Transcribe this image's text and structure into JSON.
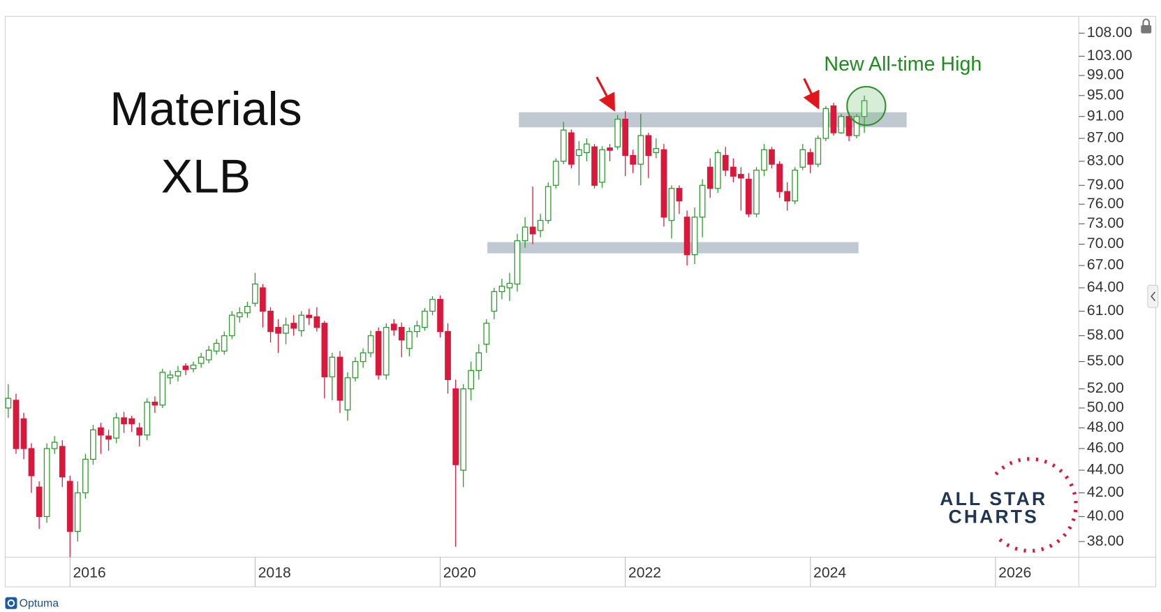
{
  "chart_data": {
    "type": "candlestick",
    "title": "Materials",
    "subtitle": "XLB",
    "annotation": "New All-time High",
    "log_scale": true,
    "up_color": "#2a9a2a",
    "down_color": "#d9183b",
    "band_color": "#b9c2cd",
    "xlim": [
      2015.3,
      2026.9
    ],
    "xticks": [
      2016,
      2018,
      2020,
      2022,
      2024,
      2026
    ],
    "ylim": [
      36.8,
      111.8
    ],
    "yticks": [
      {
        "value": 108,
        "label": "108.00"
      },
      {
        "value": 103,
        "label": "103.00"
      },
      {
        "value": 99,
        "label": "99.00"
      },
      {
        "value": 95,
        "label": "95.00"
      },
      {
        "value": 91,
        "label": "91.00"
      },
      {
        "value": 87,
        "label": "87.00"
      },
      {
        "value": 83,
        "label": "83.00"
      },
      {
        "value": 79,
        "label": "79.00"
      },
      {
        "value": 76,
        "label": "76.00"
      },
      {
        "value": 73,
        "label": "73.00"
      },
      {
        "value": 70,
        "label": "70.00"
      },
      {
        "value": 67,
        "label": "67.00"
      },
      {
        "value": 64,
        "label": "64.00"
      },
      {
        "value": 61,
        "label": "61.00"
      },
      {
        "value": 58,
        "label": "58.00"
      },
      {
        "value": 55,
        "label": "55.00"
      },
      {
        "value": 52,
        "label": "52.00"
      },
      {
        "value": 50,
        "label": "50.00"
      },
      {
        "value": 48,
        "label": "48.00"
      },
      {
        "value": 46,
        "label": "46.00"
      },
      {
        "value": 44,
        "label": "44.00"
      },
      {
        "value": 42,
        "label": "42.00"
      },
      {
        "value": 40,
        "label": "40.00"
      },
      {
        "value": 38,
        "label": "38.00"
      }
    ],
    "bands": [
      {
        "from": 89.0,
        "to": 91.8,
        "x": [
          2020.85,
          2025.04
        ]
      },
      {
        "from": 68.7,
        "to": 70.3,
        "x": [
          2020.51,
          2024.52
        ]
      }
    ],
    "x": [
      2015.333,
      2015.417,
      2015.5,
      2015.583,
      2015.667,
      2015.75,
      2015.833,
      2015.917,
      2016,
      2016.083,
      2016.167,
      2016.25,
      2016.333,
      2016.417,
      2016.5,
      2016.583,
      2016.667,
      2016.75,
      2016.833,
      2016.917,
      2017,
      2017.083,
      2017.167,
      2017.25,
      2017.333,
      2017.417,
      2017.5,
      2017.583,
      2017.667,
      2017.75,
      2017.833,
      2017.917,
      2018,
      2018.083,
      2018.167,
      2018.25,
      2018.333,
      2018.417,
      2018.5,
      2018.583,
      2018.667,
      2018.75,
      2018.833,
      2018.917,
      2019,
      2019.083,
      2019.167,
      2019.25,
      2019.333,
      2019.417,
      2019.5,
      2019.583,
      2019.667,
      2019.75,
      2019.833,
      2019.917,
      2020,
      2020.083,
      2020.167,
      2020.25,
      2020.333,
      2020.417,
      2020.5,
      2020.583,
      2020.667,
      2020.75,
      2020.833,
      2020.917,
      2021,
      2021.083,
      2021.167,
      2021.25,
      2021.333,
      2021.417,
      2021.5,
      2021.583,
      2021.667,
      2021.75,
      2021.833,
      2021.917,
      2022,
      2022.083,
      2022.167,
      2022.25,
      2022.333,
      2022.417,
      2022.5,
      2022.583,
      2022.667,
      2022.75,
      2022.833,
      2022.917,
      2023,
      2023.083,
      2023.167,
      2023.25,
      2023.333,
      2023.417,
      2023.5,
      2023.583,
      2023.667,
      2023.75,
      2023.833,
      2023.917,
      2024,
      2024.083,
      2024.167,
      2024.25,
      2024.333,
      2024.417,
      2024.5,
      2024.583
    ],
    "open": [
      50.0,
      50.8,
      48.9,
      46.0,
      42.5,
      40.0,
      46.0,
      46.2,
      43.0,
      38.8,
      42.0,
      45.0,
      48.0,
      47.2,
      47.0,
      49.0,
      48.9,
      48.0,
      47.3,
      50.6,
      50.3,
      53.2,
      53.4,
      54.5,
      54.2,
      54.8,
      55.2,
      56.2,
      56.2,
      58.0,
      60.3,
      60.8,
      62.0,
      64.0,
      61.0,
      59.0,
      58.3,
      59.5,
      58.6,
      60.5,
      60.3,
      59.5,
      53.3,
      55.5,
      49.8,
      53.2,
      55.0,
      56.0,
      58.5,
      53.5,
      59.4,
      59.0,
      56.5,
      58.5,
      59.0,
      61.0,
      62.5,
      58.5,
      52.0,
      44.0,
      52.0,
      54.0,
      57.0,
      61.0,
      63.5,
      64.0,
      64.5,
      70.5,
      72.5,
      72.0,
      73.5,
      79.0,
      83.0,
      88.0,
      84.0,
      84.5,
      85.5,
      79.5,
      85.3,
      85.5,
      90.5,
      84.0,
      82.5,
      87.5,
      84.5,
      85.0,
      73.5,
      78.5,
      74.0,
      68.5,
      74.0,
      82.0,
      78.5,
      84.0,
      82.0,
      80.8,
      80.0,
      74.5,
      81.5,
      85.0,
      82.5,
      78.0,
      76.5,
      82.0,
      84.5,
      82.5,
      87.0,
      93.0,
      88.0,
      91.0,
      87.5,
      91.0
    ],
    "high": [
      52.5,
      51.5,
      49.5,
      46.5,
      43.0,
      46.5,
      47.2,
      46.8,
      43.5,
      43.0,
      45.5,
      48.3,
      48.5,
      47.8,
      49.5,
      49.6,
      49.2,
      48.5,
      51.0,
      51.2,
      54.2,
      54.0,
      54.5,
      54.8,
      55.0,
      56.0,
      56.8,
      57.6,
      58.5,
      61.0,
      61.5,
      62.2,
      66.0,
      64.5,
      61.5,
      60.0,
      60.2,
      60.5,
      61.0,
      61.3,
      61.5,
      59.8,
      56.0,
      56.2,
      53.8,
      55.5,
      56.5,
      58.6,
      59.0,
      59.5,
      60.0,
      59.6,
      59.0,
      59.8,
      61.4,
      62.9,
      63.0,
      59.5,
      53.0,
      52.5,
      55.0,
      57.0,
      60.0,
      64.0,
      65.2,
      66.0,
      71.5,
      74.0,
      78.8,
      74.5,
      79.5,
      83.5,
      90.0,
      88.6,
      86.5,
      87.0,
      86.0,
      85.6,
      86.0,
      91.3,
      92.0,
      85.0,
      91.5,
      88.0,
      87.0,
      86.0,
      79.0,
      79.0,
      75.0,
      75.5,
      80.0,
      83.5,
      85.0,
      85.5,
      83.5,
      82.0,
      81.0,
      82.0,
      86.0,
      85.5,
      83.0,
      79.5,
      82.0,
      86.0,
      85.2,
      87.5,
      93.0,
      93.6,
      91.5,
      91.8,
      91.5,
      95.0
    ],
    "low": [
      49.0,
      45.5,
      45.0,
      42.0,
      39.0,
      39.5,
      45.5,
      42.5,
      36.8,
      38.0,
      41.5,
      44.5,
      45.5,
      45.8,
      46.5,
      47.5,
      47.6,
      46.2,
      46.8,
      49.5,
      50.0,
      52.5,
      52.8,
      53.5,
      53.8,
      54.3,
      54.8,
      55.8,
      55.8,
      57.6,
      59.6,
      60.2,
      61.6,
      59.0,
      57.2,
      56.0,
      57.0,
      58.0,
      57.9,
      59.3,
      58.5,
      51.0,
      50.8,
      49.5,
      48.7,
      52.8,
      54.3,
      55.5,
      53.0,
      53.0,
      58.0,
      55.5,
      55.6,
      57.8,
      58.6,
      60.5,
      57.8,
      51.5,
      37.6,
      42.5,
      50.8,
      53.0,
      56.0,
      60.0,
      62.5,
      62.3,
      63.5,
      69.5,
      70.0,
      71.0,
      73.0,
      78.5,
      82.5,
      81.8,
      79.0,
      83.0,
      78.5,
      78.6,
      83.0,
      85.0,
      80.5,
      81.0,
      79.0,
      80.2,
      83.5,
      72.6,
      70.8,
      74.5,
      67.0,
      67.2,
      71.0,
      77.0,
      77.8,
      80.5,
      79.5,
      75.0,
      74.0,
      74.0,
      80.5,
      81.8,
      77.0,
      75.0,
      76.0,
      81.5,
      81.0,
      82.0,
      86.5,
      87.5,
      87.8,
      86.5,
      87.0,
      88.0
    ],
    "close": [
      51.0,
      46.0,
      46.0,
      43.5,
      40.0,
      46.0,
      46.6,
      43.4,
      38.8,
      42.0,
      45.0,
      47.8,
      47.3,
      46.9,
      49.0,
      48.4,
      48.4,
      47.3,
      50.6,
      50.3,
      53.8,
      53.5,
      53.9,
      54.1,
      54.6,
      55.5,
      56.3,
      57.1,
      58.0,
      60.5,
      60.8,
      61.6,
      64.5,
      61.0,
      58.5,
      58.3,
      59.3,
      58.9,
      60.5,
      60.2,
      59.0,
      53.3,
      55.5,
      50.8,
      53.2,
      55.0,
      56.0,
      58.0,
      53.5,
      59.0,
      58.7,
      57.5,
      58.5,
      59.2,
      61.0,
      62.5,
      58.5,
      53.0,
      44.5,
      52.0,
      54.0,
      56.0,
      59.5,
      63.5,
      64.2,
      64.6,
      70.5,
      72.5,
      71.5,
      73.5,
      78.8,
      83.0,
      88.5,
      82.5,
      85.0,
      86.0,
      79.0,
      85.0,
      84.9,
      90.5,
      84.0,
      82.5,
      87.5,
      84.0,
      85.2,
      74.0,
      78.5,
      76.5,
      68.5,
      74.0,
      79.0,
      78.5,
      84.5,
      81.5,
      80.5,
      80.2,
      74.5,
      81.5,
      85.0,
      82.5,
      78.0,
      76.5,
      81.5,
      85.0,
      82.5,
      87.0,
      92.5,
      88.0,
      91.0,
      87.5,
      91.0,
      94.0
    ]
  },
  "branding": {
    "watermark": [
      "ALL STAR",
      "CHARTS"
    ],
    "footer": "Optuma"
  }
}
